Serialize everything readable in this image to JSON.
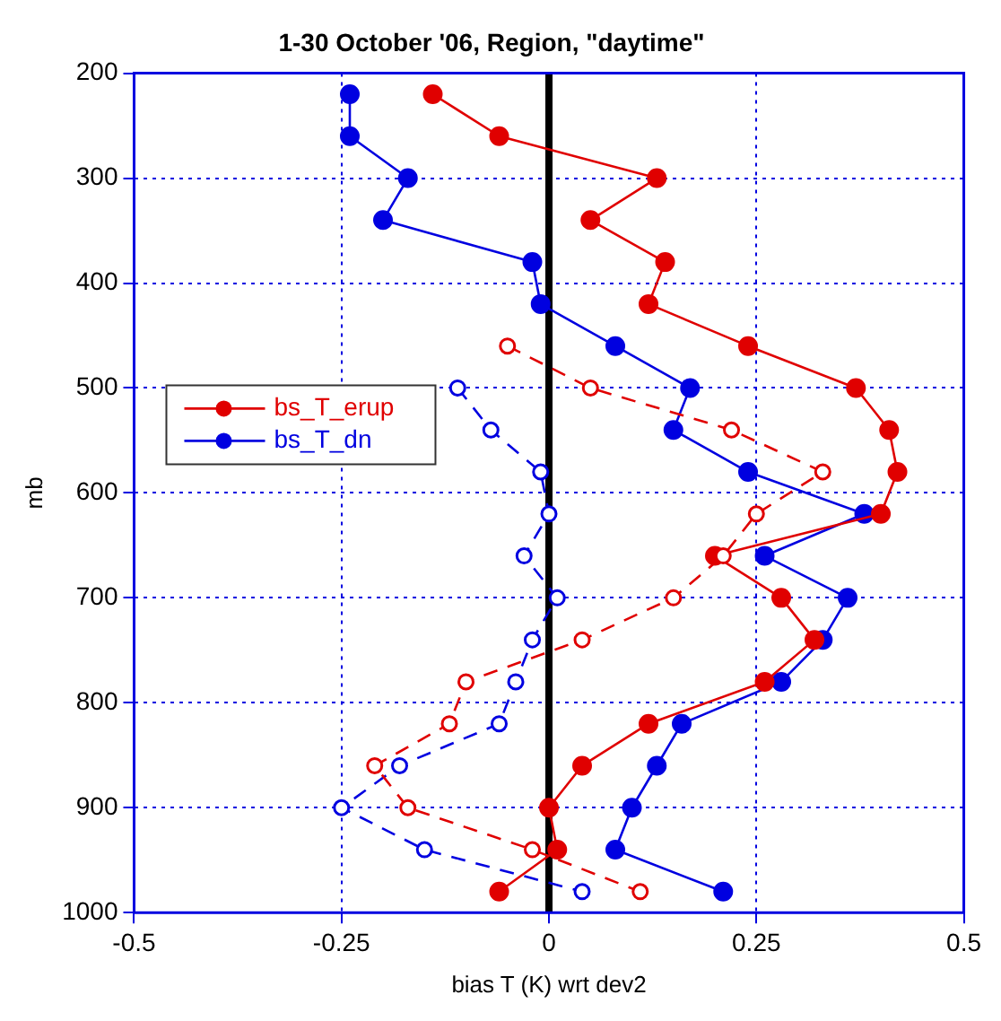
{
  "chart_data": {
    "type": "line",
    "title": "1-30 October '06, Region, \"daytime\"",
    "xlabel": "bias T (K) wrt dev2",
    "ylabel": "mb",
    "xlim": [
      -0.5,
      0.5
    ],
    "xticks": [
      -0.5,
      -0.25,
      0,
      0.25,
      0.5
    ],
    "ylim": [
      1000,
      200
    ],
    "yticks": [
      200,
      300,
      400,
      500,
      600,
      700,
      800,
      900,
      1000
    ],
    "grid": true,
    "legend": "left",
    "marker": "circle",
    "line_style": "solid",
    "ref_lines": [
      {
        "axis": "x",
        "value": 0,
        "color": "#000000"
      }
    ],
    "series": [
      {
        "name": "bs_T_erup",
        "color": "#e00000",
        "x": [
          -0.14,
          -0.06,
          0.13,
          0.05,
          0.14,
          0.12,
          0.24,
          0.37,
          0.41,
          0.42,
          0.4,
          0.2,
          0.28,
          0.32,
          0.26,
          0.12,
          0.04,
          0.0,
          0.01,
          -0.06
        ],
        "values": [
          220,
          260,
          300,
          340,
          380,
          420,
          460,
          500,
          540,
          580,
          620,
          660,
          700,
          740,
          780,
          820,
          860,
          900,
          940,
          980
        ]
      },
      {
        "name": "bs_T_dn",
        "color": "#0000e0",
        "x": [
          -0.24,
          -0.24,
          -0.17,
          -0.2,
          -0.02,
          -0.01,
          0.08,
          0.17,
          0.15,
          0.24,
          0.38,
          0.26,
          0.36,
          0.33,
          0.28,
          0.16,
          0.13,
          0.1,
          0.08,
          0.21
        ],
        "values": [
          220,
          260,
          300,
          340,
          380,
          420,
          460,
          500,
          540,
          580,
          620,
          660,
          700,
          740,
          780,
          820,
          860,
          900,
          940,
          980
        ]
      },
      {
        "color": "#e00000",
        "line_style": "dashed",
        "x": [
          -0.05,
          0.05,
          0.22,
          0.33,
          0.25,
          0.21,
          0.15,
          0.04,
          -0.1,
          -0.12,
          -0.21,
          -0.17,
          -0.02,
          0.11
        ],
        "values": [
          460,
          500,
          540,
          580,
          620,
          660,
          700,
          740,
          780,
          820,
          860,
          900,
          940,
          980
        ]
      },
      {
        "color": "#0000e0",
        "line_style": "dashed",
        "x": [
          -0.11,
          -0.07,
          -0.01,
          0.0,
          -0.03,
          0.01,
          -0.02,
          -0.04,
          -0.06,
          -0.18,
          -0.25,
          -0.15,
          0.04
        ],
        "values": [
          500,
          540,
          580,
          620,
          660,
          700,
          740,
          780,
          820,
          860,
          900,
          940,
          980
        ]
      }
    ]
  }
}
